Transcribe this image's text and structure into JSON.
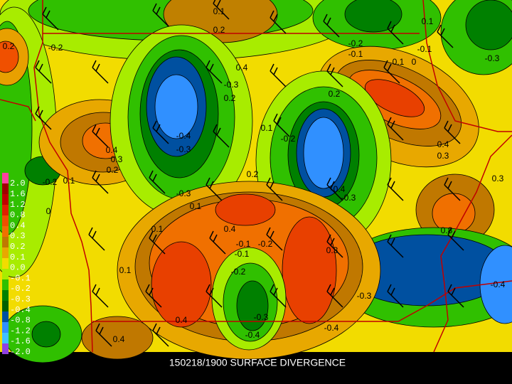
{
  "title": "150218/1900 SURFACE DIVERGENCE",
  "legend": [
    "2.0",
    "1.6",
    "1.2",
    "0.8",
    "0.4",
    "0.3",
    "0.2",
    "0.1",
    "0.0",
    "-0.1",
    "-0.2",
    "-0.3",
    "-0.4",
    "-0.8",
    "-1.2",
    "-1.6",
    "-2.0"
  ],
  "contour_labels": [
    "0.1",
    "0.2",
    "0.2",
    "-0.2",
    "0.4",
    "-0.3",
    "0.2",
    "-0.2",
    "-0.1",
    "0.1",
    "-0.1",
    "0.1",
    "0",
    "-0.3",
    "0.2",
    "0.1",
    "-0.2",
    "-0.4",
    "-0.3",
    "0.4",
    "0.3",
    "0.2",
    "-0.2",
    "0.1",
    "0",
    "0.2",
    "-0.4",
    "-0.3",
    "0.4",
    "0.3",
    "0.3",
    "-0.3",
    "0.1",
    "0.1",
    "0.4",
    "-0.1",
    "-0.1",
    "-0.2",
    "0.3",
    "0.8",
    "0.1",
    "-0.2",
    "-0.3",
    "-0.4",
    "0.4",
    "-0.3",
    "-0.4",
    "-0.4",
    "0.4"
  ]
}
